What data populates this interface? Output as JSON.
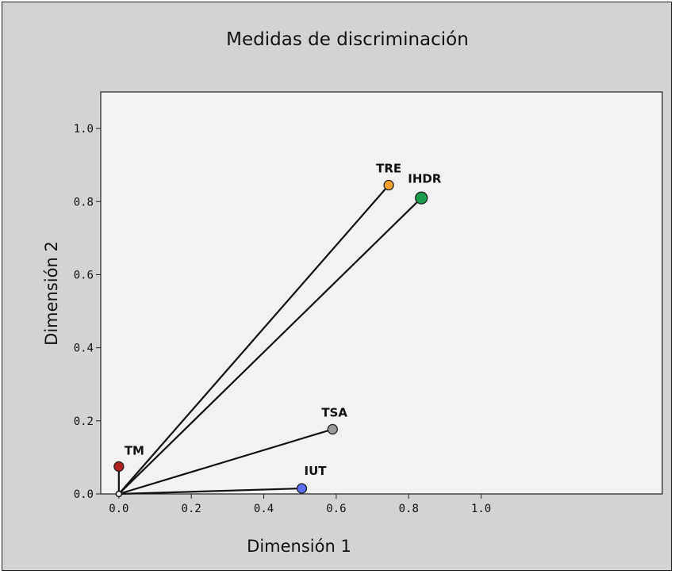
{
  "chart_data": {
    "type": "scatter",
    "title": "Medidas de discriminación",
    "xlabel": "Dimensión 1",
    "ylabel": "Dimensión 2",
    "xlim": [
      -0.05,
      1.5
    ],
    "ylim": [
      0.0,
      1.1
    ],
    "x_ticks": [
      "0.0",
      "0.2",
      "0.4",
      "0.6",
      "0.8",
      "1.0"
    ],
    "y_ticks": [
      "0.0",
      "0.2",
      "0.4",
      "0.6",
      "0.8",
      "1.0"
    ],
    "x_tick_values": [
      0.0,
      0.2,
      0.4,
      0.6,
      0.8,
      1.0
    ],
    "y_tick_values": [
      0.0,
      0.2,
      0.4,
      0.6,
      0.8,
      1.0
    ],
    "grid": false,
    "vectors_from_origin": true,
    "points": [
      {
        "label": "TRE",
        "x": 0.745,
        "y": 0.845,
        "color": "#f5a031",
        "large": false
      },
      {
        "label": "IHDR",
        "x": 0.835,
        "y": 0.81,
        "color": "#1a9a4a",
        "large": true
      },
      {
        "label": "TSA",
        "x": 0.59,
        "y": 0.177,
        "color": "#9a9a9a",
        "large": false
      },
      {
        "label": "TM",
        "x": 0.0,
        "y": 0.075,
        "color": "#b22222",
        "large": false
      },
      {
        "label": "IUT",
        "x": 0.505,
        "y": 0.015,
        "color": "#5a6cf0",
        "large": false
      }
    ],
    "plot_background": "#f2f2f2",
    "frame_background": "#d3d3d3"
  }
}
